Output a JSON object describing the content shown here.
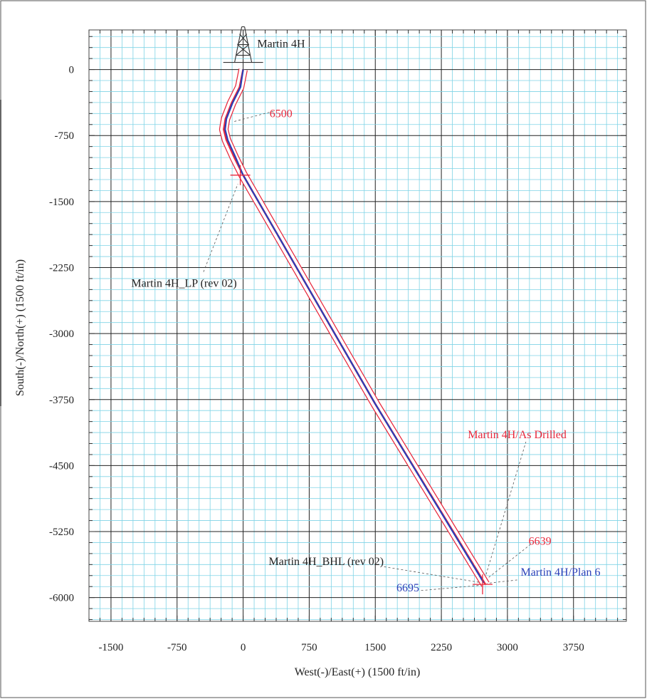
{
  "chart_data": {
    "type": "line",
    "xlabel": "West(-)/East(+) (1500 ft/in)",
    "ylabel": "South(-)/North(+) (1500 ft/in)",
    "xlim": [
      -1750,
      4350
    ],
    "ylim": [
      -6270,
      450
    ],
    "xticks": [
      -1500,
      -750,
      0,
      750,
      1500,
      2250,
      3000,
      3750
    ],
    "yticks": [
      0,
      -750,
      -1500,
      -2250,
      -3000,
      -3750,
      -4500,
      -5250,
      -6000
    ],
    "grid": true,
    "series": [
      {
        "name": "Martin 4H/As Drilled",
        "color": "#e8283c",
        "x": [
          0,
          -40,
          -130,
          -200,
          -220,
          -190,
          -100,
          0,
          1500,
          2750
        ],
        "y": [
          0,
          -200,
          -380,
          -560,
          -680,
          -800,
          -1000,
          -1200,
          -3800,
          -5850
        ]
      },
      {
        "name": "Martin 4H/Plan 6",
        "color": "#2a3fb8",
        "x": [
          0,
          -30,
          -120,
          -190,
          -205,
          -175,
          -85,
          0,
          1500,
          2730
        ],
        "y": [
          0,
          -200,
          -380,
          -560,
          -680,
          -800,
          -1000,
          -1200,
          -3800,
          -5830
        ]
      }
    ],
    "annotations": [
      {
        "text": "Martin 4H",
        "x": 160,
        "y": 250,
        "color": "#222222"
      },
      {
        "text": "6500",
        "x": 300,
        "y": -540,
        "color": "#e8283c"
      },
      {
        "text": "Martin 4H_LP (rev 02)",
        "x": -1270,
        "y": -2470,
        "color": "#222222"
      },
      {
        "text": "Martin 4H/As Drilled",
        "x": 2550,
        "y": -4190,
        "color": "#e8283c"
      },
      {
        "text": "6639",
        "x": 3240,
        "y": -5400,
        "color": "#e8283c"
      },
      {
        "text": "Martin 4H_BHL (rev 02)",
        "x": 290,
        "y": -5630,
        "color": "#222222"
      },
      {
        "text": "Martin 4H/Plan 6",
        "x": 3150,
        "y": -5750,
        "color": "#2a3fb8"
      },
      {
        "text": "6695",
        "x": 1740,
        "y": -5930,
        "color": "#2a3fb8"
      }
    ]
  }
}
